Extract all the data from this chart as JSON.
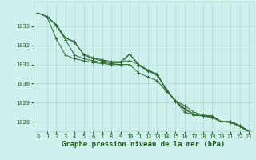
{
  "x": [
    0,
    1,
    2,
    3,
    4,
    5,
    6,
    7,
    8,
    9,
    10,
    11,
    12,
    13,
    14,
    15,
    16,
    17,
    18,
    19,
    20,
    21,
    22,
    23
  ],
  "series": [
    [
      1033.7,
      1033.5,
      1033.1,
      1032.4,
      1032.2,
      1031.5,
      1031.3,
      1031.2,
      1031.1,
      1031.1,
      1031.2,
      1031.0,
      1030.7,
      1030.5,
      1029.7,
      1029.1,
      1028.5,
      1028.35,
      1028.3,
      1028.3,
      1028.0,
      1028.0,
      1027.8,
      1027.45
    ],
    [
      1033.7,
      1033.5,
      1033.05,
      1032.4,
      1032.15,
      1031.55,
      1031.35,
      1031.25,
      1031.15,
      1031.15,
      1031.55,
      1031.0,
      1030.7,
      1030.5,
      1029.65,
      1029.1,
      1028.85,
      1028.5,
      1028.35,
      1028.3,
      1028.0,
      1028.0,
      1027.8,
      1027.5
    ],
    [
      1033.7,
      1033.5,
      1032.35,
      1031.5,
      1031.3,
      1031.2,
      1031.1,
      1031.05,
      1031.0,
      1031.0,
      1031.55,
      1030.95,
      1030.65,
      1030.45,
      1029.65,
      1029.05,
      1028.65,
      1028.35,
      1028.3,
      1028.2,
      1028.0,
      1027.95,
      1027.75,
      1027.45
    ],
    [
      1033.7,
      1033.5,
      1033.05,
      1032.3,
      1031.5,
      1031.3,
      1031.2,
      1031.1,
      1031.05,
      1031.0,
      1031.0,
      1030.55,
      1030.35,
      1030.15,
      1029.6,
      1029.1,
      1028.7,
      1028.4,
      1028.3,
      1028.25,
      1028.0,
      1028.0,
      1027.8,
      1027.5
    ]
  ],
  "line_color": "#2d6a2d",
  "marker": "+",
  "markersize": 3,
  "linewidth": 0.7,
  "background_color": "#cff0ee",
  "grid_color": "#b0d8cc",
  "xlabel": "Graphe pression niveau de la mer (hPa)",
  "xlabel_color": "#1a5c1a",
  "xlabel_fontsize": 6.5,
  "ylabel_ticks": [
    1028,
    1029,
    1030,
    1031,
    1032,
    1033
  ],
  "xtick_labels": [
    "0",
    "1",
    "2",
    "3",
    "4",
    "5",
    "6",
    "7",
    "8",
    "9",
    "10",
    "11",
    "12",
    "13",
    "14",
    "15",
    "16",
    "17",
    "18",
    "19",
    "20",
    "21",
    "22",
    "23"
  ],
  "ylim": [
    1027.5,
    1034.3
  ],
  "xlim": [
    -0.5,
    23.5
  ],
  "tick_fontsize": 5.0,
  "tick_color": "#1a5c1a"
}
